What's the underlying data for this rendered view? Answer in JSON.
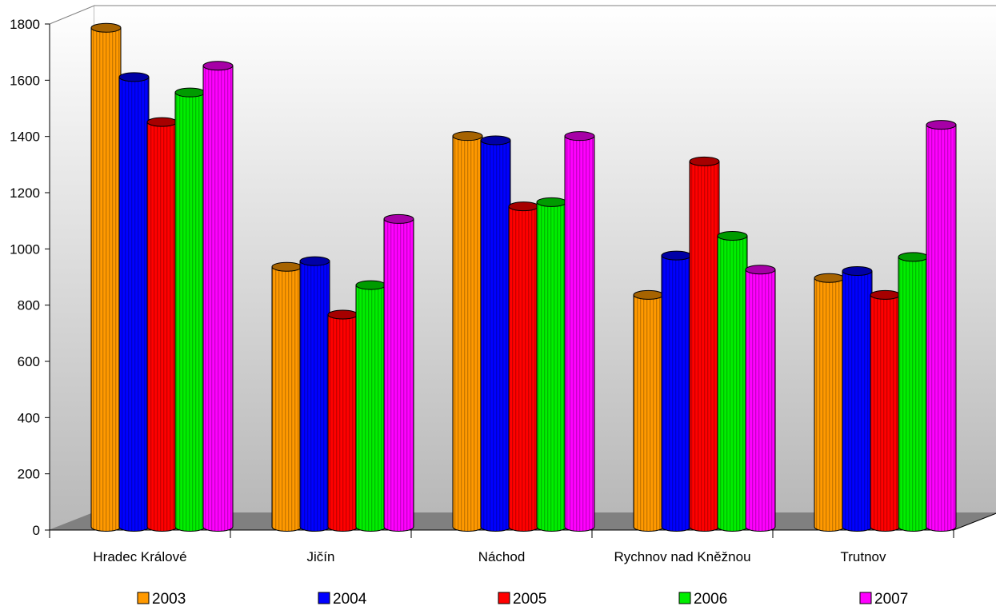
{
  "chart_data": {
    "type": "bar",
    "categories": [
      "Hradec Králové",
      "Jičín",
      "Náchod",
      "Rychnov nad Kněžnou",
      "Trutnov"
    ],
    "series": [
      {
        "name": "2003",
        "color": "#ff9900",
        "values": [
          1775,
          925,
          1390,
          825,
          885
        ]
      },
      {
        "name": "2004",
        "color": "#0000ff",
        "values": [
          1600,
          945,
          1375,
          965,
          910
        ]
      },
      {
        "name": "2005",
        "color": "#ff0000",
        "values": [
          1440,
          755,
          1140,
          1300,
          825
        ]
      },
      {
        "name": "2006",
        "color": "#00ee00",
        "values": [
          1545,
          860,
          1155,
          1035,
          960
        ]
      },
      {
        "name": "2007",
        "color": "#ff00ff",
        "values": [
          1640,
          1095,
          1390,
          915,
          1430
        ]
      }
    ],
    "y_ticks": [
      "0",
      "200",
      "400",
      "600",
      "800",
      "1000",
      "1200",
      "1400",
      "1600",
      "1800"
    ],
    "ylim": [
      0,
      1800
    ],
    "title": "",
    "xlabel": "",
    "ylabel": "",
    "legend_position": "bottom",
    "grid": false,
    "style": "3d-cylinder"
  }
}
